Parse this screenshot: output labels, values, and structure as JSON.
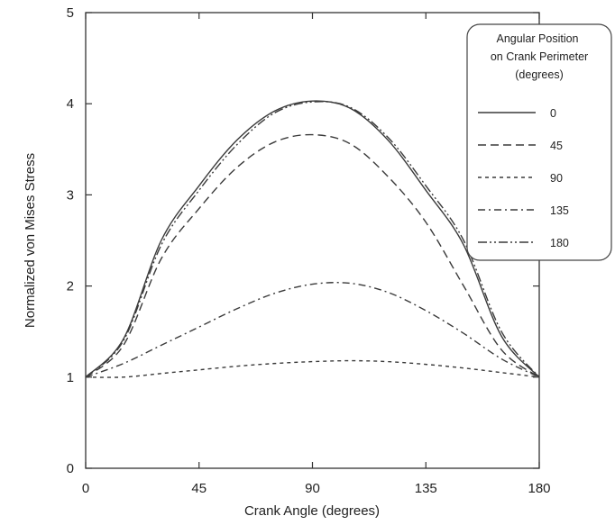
{
  "chart_data": {
    "type": "line",
    "title": "",
    "xlabel": "Crank Angle (degrees)",
    "ylabel": "Normalized von Mises Stress",
    "xlim": [
      0,
      180
    ],
    "ylim": [
      0,
      5
    ],
    "xticks": [
      0,
      45,
      90,
      135,
      180
    ],
    "yticks": [
      0,
      1,
      2,
      3,
      4,
      5
    ],
    "grid": false,
    "legend": {
      "placement": "top-right",
      "title_lines": [
        "Angular Position",
        "on Crank Perimeter",
        "(degrees)"
      ]
    },
    "x": [
      0,
      15,
      30,
      45,
      60,
      75,
      90,
      105,
      120,
      135,
      150,
      165,
      180
    ],
    "series": [
      {
        "name": "0",
        "dash": "solid",
        "values": [
          1.0,
          1.42,
          2.5,
          3.1,
          3.6,
          3.92,
          4.03,
          3.95,
          3.6,
          3.05,
          2.45,
          1.45,
          1.0
        ]
      },
      {
        "name": "45",
        "dash": "long-dash",
        "values": [
          1.0,
          1.35,
          2.3,
          2.85,
          3.3,
          3.58,
          3.66,
          3.56,
          3.2,
          2.7,
          2.0,
          1.3,
          1.0
        ]
      },
      {
        "name": "90",
        "dash": "short-dash",
        "values": [
          1.0,
          1.0,
          1.04,
          1.08,
          1.12,
          1.15,
          1.17,
          1.18,
          1.17,
          1.14,
          1.1,
          1.05,
          1.0
        ]
      },
      {
        "name": "135",
        "dash": "dash-dot",
        "values": [
          1.0,
          1.15,
          1.35,
          1.55,
          1.75,
          1.92,
          2.02,
          2.03,
          1.93,
          1.73,
          1.48,
          1.2,
          1.0
        ]
      },
      {
        "name": "180",
        "dash": "dash-dot-dot",
        "values": [
          1.0,
          1.4,
          2.45,
          3.05,
          3.55,
          3.9,
          4.02,
          3.96,
          3.63,
          3.1,
          2.5,
          1.5,
          1.0
        ]
      }
    ]
  }
}
